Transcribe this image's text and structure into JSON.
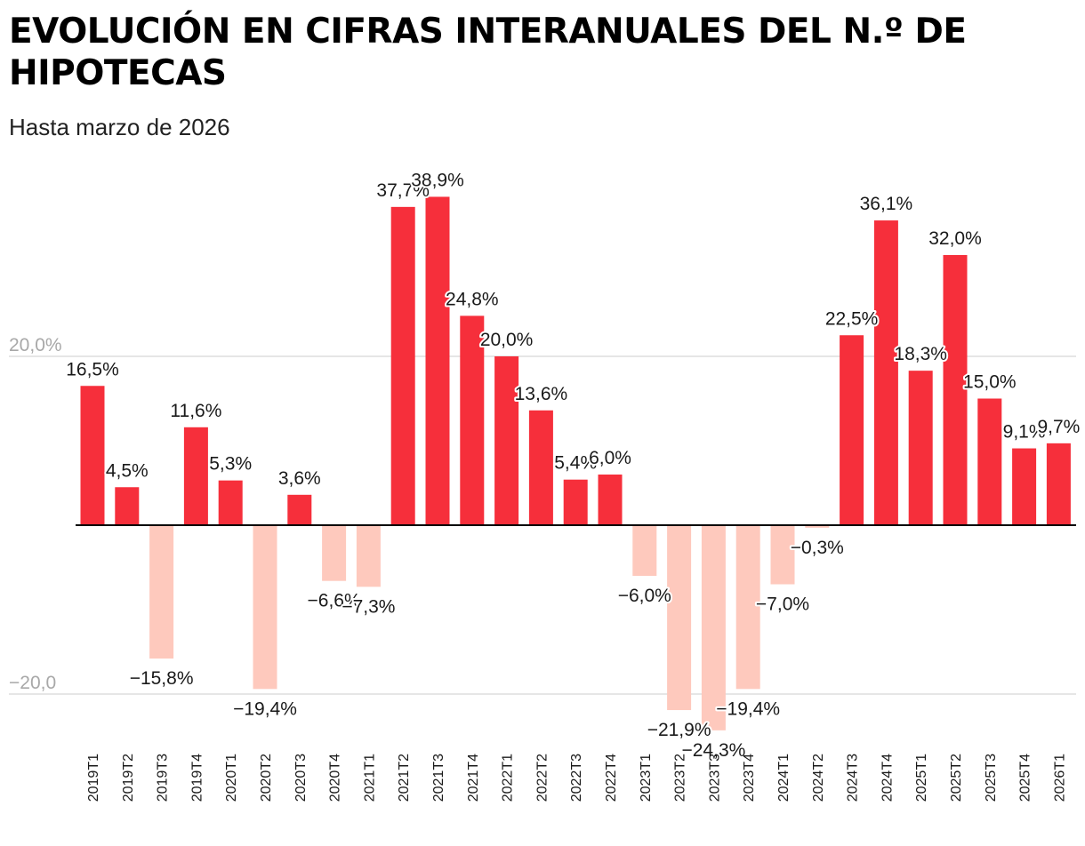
{
  "title": "EVOLUCIÓN EN CIFRAS INTERANUALES DEL N.º DE HIPOTECAS",
  "subtitle": "Hasta marzo de 2026",
  "chart_data": {
    "type": "bar",
    "title": "EVOLUCIÓN EN CIFRAS INTERANUALES DEL N.º DE HIPOTECAS",
    "subtitle": "Hasta marzo de 2026",
    "xlabel": "",
    "ylabel": "",
    "ylim": [
      -27,
      42
    ],
    "yticks": [
      {
        "value": 20,
        "label": "20,0%"
      },
      {
        "value": -20,
        "label": "−20,0"
      }
    ],
    "grid": true,
    "colors": {
      "positive": "#f62f3b",
      "negative": "#fec9bd",
      "baseline": "#000000",
      "grid": "#dddddd"
    },
    "categories": [
      "2019T1",
      "2019T2",
      "2019T3",
      "2019T4",
      "2020T1",
      "2020T2",
      "2020T3",
      "2020T4",
      "2021T1",
      "2021T2",
      "2021T3",
      "2021T4",
      "2022T1",
      "2022T2",
      "2022T3",
      "2022T4",
      "2023T1",
      "2023T2",
      "2023T3",
      "2023T4",
      "2024T1",
      "2024T2",
      "2024T3",
      "2024T4",
      "2025T1",
      "2025T2",
      "2025T3",
      "2025T4",
      "2026T1"
    ],
    "values": [
      16.5,
      4.5,
      -15.8,
      11.6,
      5.3,
      -19.4,
      3.6,
      -6.6,
      -7.3,
      37.7,
      38.9,
      24.8,
      20.0,
      13.6,
      5.4,
      6.0,
      -6.0,
      -21.9,
      -24.3,
      -19.4,
      -7.0,
      -0.3,
      22.5,
      36.1,
      18.3,
      32.0,
      15.0,
      9.1,
      9.7
    ],
    "labels": [
      "16,5%",
      "4,5%",
      "−15,8%",
      "11,6%",
      "5,3%",
      "−19,4%",
      "3,6%",
      "−6,6%",
      "−7,3%",
      "37,7%",
      "38,9%",
      "24,8%",
      "20,0%",
      "13,6%",
      "5,4%",
      "6,0%",
      "−6,0%",
      "−21,9%",
      "−24,3%",
      "−19,4%",
      "−7,0%",
      "−0,3%",
      "22,5%",
      "36,1%",
      "18,3%",
      "32,0%",
      "15,0%",
      "9,1%",
      "9,7%"
    ]
  }
}
